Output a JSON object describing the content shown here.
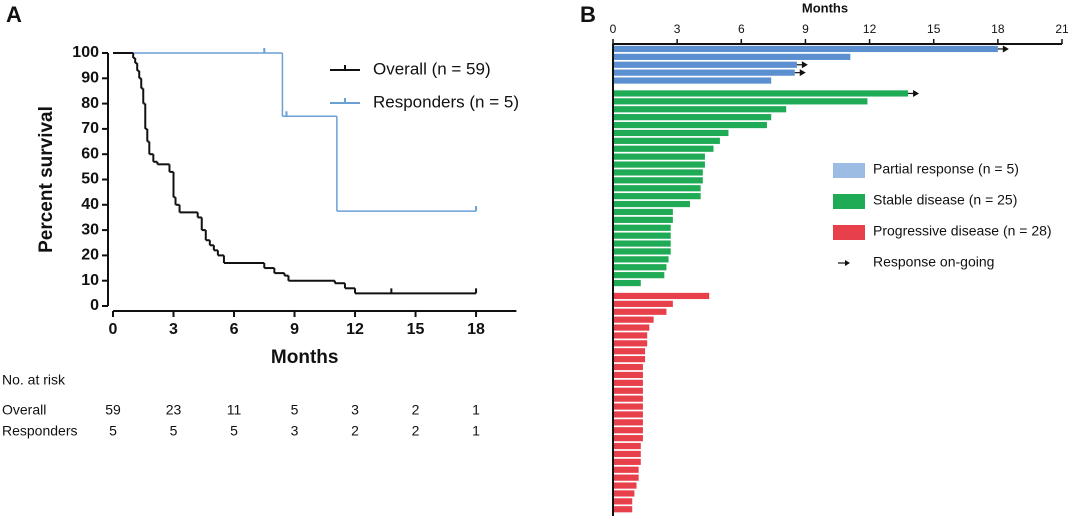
{
  "chart_data": [
    {
      "panel": "A",
      "type": "step",
      "xlabel": "Months",
      "ylabel": "Percent survival",
      "xlim": [
        0,
        20
      ],
      "ylim": [
        0,
        100
      ],
      "xticks": [
        0,
        3,
        6,
        9,
        12,
        15,
        18
      ],
      "yticks": [
        0,
        10,
        20,
        30,
        40,
        50,
        60,
        70,
        80,
        90,
        100
      ],
      "legend": "upper right",
      "series": [
        {
          "name": "Overall (n = 59)",
          "color": "#111111",
          "x": [
            0,
            1.0,
            1.1,
            1.2,
            1.3,
            1.4,
            1.5,
            1.6,
            1.7,
            1.8,
            2.0,
            2.2,
            2.8,
            3.0,
            3.1,
            3.3,
            4.2,
            4.4,
            4.6,
            4.8,
            5.0,
            5.2,
            5.5,
            7.5,
            8.0,
            8.5,
            8.7,
            11.0,
            11.5,
            12.0,
            18.0
          ],
          "values": [
            100,
            98,
            96,
            93,
            90,
            86,
            80,
            70,
            65,
            60,
            57,
            56,
            53,
            43,
            40,
            37,
            35,
            30,
            26,
            24,
            22,
            20,
            17,
            15,
            13,
            12,
            10,
            9,
            7,
            5,
            5
          ],
          "censored": [
            8.7,
            13.8,
            18
          ]
        },
        {
          "name": "Responders (n = 5)",
          "color": "#6aa0d4",
          "x": [
            0,
            8.4,
            11.1,
            18
          ],
          "values": [
            100,
            75,
            37.5,
            37.5
          ],
          "censored": [
            7.5,
            8.6,
            18
          ]
        }
      ],
      "risk_table": {
        "title": "No. at risk",
        "rows": [
          {
            "name": "Overall",
            "values": [
              59,
              23,
              11,
              5,
              3,
              2,
              1
            ]
          },
          {
            "name": "Responders",
            "values": [
              5,
              5,
              5,
              3,
              2,
              2,
              1
            ]
          }
        ]
      }
    },
    {
      "panel": "B",
      "type": "bar",
      "orientation": "horizontal",
      "xlabel": "Months",
      "xlim": [
        0,
        21
      ],
      "xticks": [
        0,
        3,
        6,
        9,
        12,
        15,
        18,
        21
      ],
      "legend": "right",
      "arrow_label": "Response on-going",
      "series": [
        {
          "name": "Partial response (n = 5)",
          "color": "#5b8fd0",
          "values": [
            18.0,
            11.1,
            8.6,
            8.5,
            7.4
          ],
          "ongoing": [
            true,
            false,
            true,
            true,
            false
          ]
        },
        {
          "name": "Stable disease (n = 25)",
          "color": "#1fab55",
          "values": [
            13.8,
            11.9,
            8.1,
            7.4,
            7.2,
            5.4,
            5.0,
            4.7,
            4.3,
            4.3,
            4.2,
            4.2,
            4.1,
            4.1,
            3.6,
            2.8,
            2.8,
            2.7,
            2.7,
            2.7,
            2.7,
            2.6,
            2.5,
            2.4,
            1.3
          ],
          "ongoing": [
            true,
            false,
            false,
            false,
            false,
            false,
            false,
            false,
            false,
            false,
            false,
            false,
            false,
            false,
            false,
            false,
            false,
            false,
            false,
            false,
            false,
            false,
            false,
            false,
            false
          ]
        },
        {
          "name": "Progressive disease (n = 28)",
          "color": "#e8404a",
          "values": [
            4.5,
            2.8,
            2.5,
            1.9,
            1.7,
            1.6,
            1.6,
            1.5,
            1.5,
            1.4,
            1.4,
            1.4,
            1.4,
            1.4,
            1.4,
            1.4,
            1.4,
            1.4,
            1.4,
            1.3,
            1.3,
            1.3,
            1.2,
            1.2,
            1.1,
            1.0,
            0.9,
            0.9
          ],
          "ongoing": [
            false,
            false,
            false,
            false,
            false,
            false,
            false,
            false,
            false,
            false,
            false,
            false,
            false,
            false,
            false,
            false,
            false,
            false,
            false,
            false,
            false,
            false,
            false,
            false,
            false,
            false,
            false,
            false
          ]
        }
      ]
    }
  ]
}
